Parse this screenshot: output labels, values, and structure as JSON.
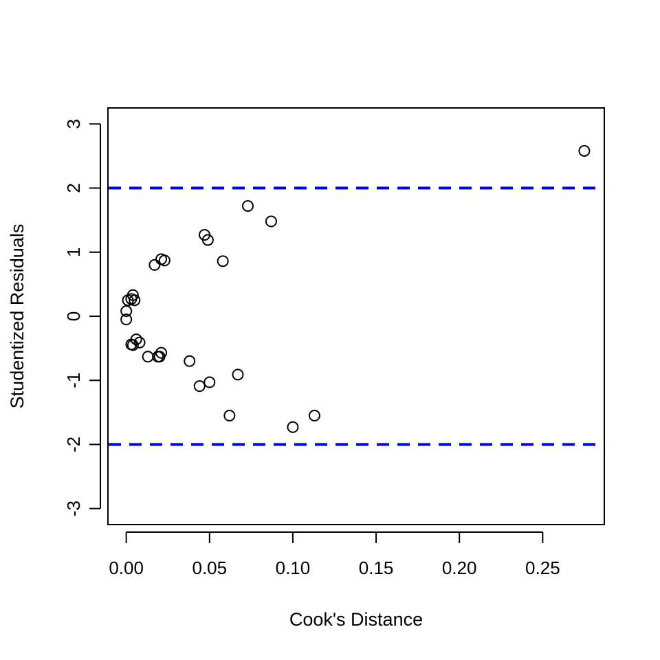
{
  "chart_data": {
    "type": "scatter",
    "title": "",
    "xlabel": "Cook's Distance",
    "ylabel": "Studentized Residuals",
    "xlim": [
      -0.011,
      0.287
    ],
    "ylim": [
      -3.25,
      3.25
    ],
    "x_ticks": [
      0.0,
      0.05,
      0.1,
      0.15,
      0.2,
      0.25
    ],
    "x_tick_labels": [
      "0.00",
      "0.05",
      "0.10",
      "0.15",
      "0.20",
      "0.25"
    ],
    "y_ticks": [
      -3,
      -2,
      -1,
      0,
      1,
      2,
      3
    ],
    "y_tick_labels": [
      "-3",
      "-2",
      "-1",
      "0",
      "1",
      "2",
      "3"
    ],
    "grid": false,
    "marker": "open-circle",
    "reference_lines": [
      {
        "axis": "y",
        "value": 2,
        "style": "dashed",
        "color": "#0000ee"
      },
      {
        "axis": "y",
        "value": -2,
        "style": "dashed",
        "color": "#0000ee"
      }
    ],
    "series": [
      {
        "points": [
          {
            "x": 0.275,
            "y": 2.58
          },
          {
            "x": 0.073,
            "y": 1.72
          },
          {
            "x": 0.087,
            "y": 1.48
          },
          {
            "x": 0.047,
            "y": 1.27
          },
          {
            "x": 0.049,
            "y": 1.19
          },
          {
            "x": 0.058,
            "y": 0.86
          },
          {
            "x": 0.021,
            "y": 0.89
          },
          {
            "x": 0.023,
            "y": 0.87
          },
          {
            "x": 0.017,
            "y": 0.8
          },
          {
            "x": 0.004,
            "y": 0.33
          },
          {
            "x": 0.001,
            "y": 0.25
          },
          {
            "x": 0.003,
            "y": 0.27
          },
          {
            "x": 0.005,
            "y": 0.25
          },
          {
            "x": 0.0,
            "y": 0.08
          },
          {
            "x": 0.0,
            "y": -0.05
          },
          {
            "x": 0.006,
            "y": -0.36
          },
          {
            "x": 0.008,
            "y": -0.41
          },
          {
            "x": 0.003,
            "y": -0.44
          },
          {
            "x": 0.004,
            "y": -0.45
          },
          {
            "x": 0.013,
            "y": -0.63
          },
          {
            "x": 0.019,
            "y": -0.63
          },
          {
            "x": 0.02,
            "y": -0.63
          },
          {
            "x": 0.021,
            "y": -0.57
          },
          {
            "x": 0.038,
            "y": -0.7
          },
          {
            "x": 0.044,
            "y": -1.09
          },
          {
            "x": 0.05,
            "y": -1.03
          },
          {
            "x": 0.067,
            "y": -0.91
          },
          {
            "x": 0.062,
            "y": -1.55
          },
          {
            "x": 0.1,
            "y": -1.73
          },
          {
            "x": 0.113,
            "y": -1.55
          }
        ]
      }
    ]
  }
}
